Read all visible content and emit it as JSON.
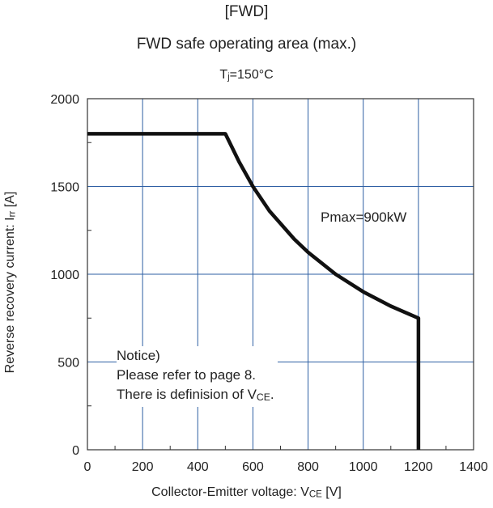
{
  "titles": {
    "line1": "[FWD]",
    "line2": "FWD safe operating area (max.)",
    "line3_main": "T",
    "line3_sub": "j",
    "line3_rest": "=150°C"
  },
  "axes": {
    "x_label_main": "Collector-Emitter voltage: V",
    "x_label_sub": "CE",
    "x_label_rest": " [V]",
    "y_label_main": "Reverse recovery current: I",
    "y_label_sub": "rr",
    "y_label_rest": " [A]"
  },
  "annotations": {
    "pmax": "Pmax=900kW",
    "notice_1": "Notice)",
    "notice_2": "Please refer to page 8.",
    "notice_3_main": "There is definision of V",
    "notice_3_sub": "CE",
    "notice_3_rest": "."
  },
  "chart_data": {
    "type": "line",
    "title": "FWD safe operating area (max.)",
    "xlabel": "Collector-Emitter voltage: VCE [V]",
    "ylabel": "Reverse recovery current: Irr [A]",
    "xlim": [
      0,
      1400
    ],
    "ylim": [
      0,
      2000
    ],
    "xticks": [
      0,
      200,
      400,
      600,
      800,
      1000,
      1200,
      1400
    ],
    "yticks": [
      0,
      500,
      1000,
      1500,
      2000
    ],
    "grid": true,
    "series": [
      {
        "x": [
          0,
          500,
          550,
          600,
          660,
          750,
          800,
          900,
          1000,
          1100,
          1200,
          1200
        ],
        "y": [
          1800,
          1800,
          1640,
          1500,
          1360,
          1200,
          1125,
          1000,
          900,
          818,
          750,
          0
        ]
      }
    ],
    "colors": {
      "line": "#111111",
      "grid": "#2e5fa3",
      "frame": "#333333"
    }
  }
}
